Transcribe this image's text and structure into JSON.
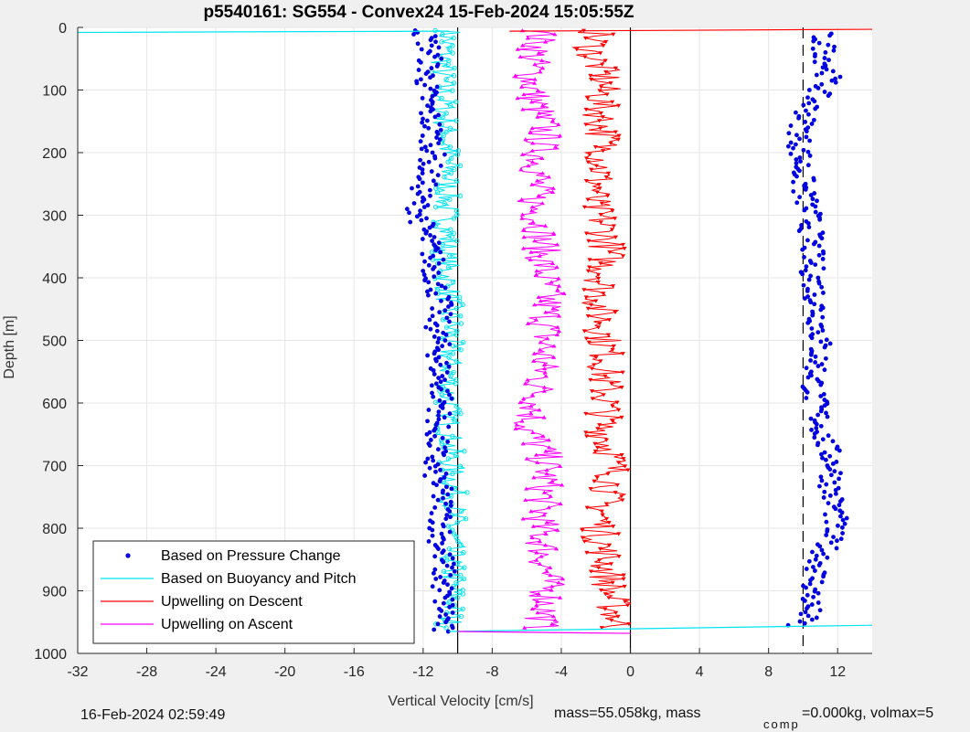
{
  "chart_data": {
    "type": "scatter",
    "title": "p5540161: SG554 - Convex24 15-Feb-2024 15:05:55Z",
    "xlabel": "Vertical Velocity [cm/s]",
    "ylabel": "Depth [m]",
    "xlim": [
      -32,
      14
    ],
    "ylim": [
      1000,
      0
    ],
    "y_reversed": true,
    "x_ticks": [
      -32,
      -28,
      -24,
      -20,
      -16,
      -12,
      -8,
      -4,
      0,
      4,
      8,
      12
    ],
    "y_ticks": [
      0,
      100,
      200,
      300,
      400,
      500,
      600,
      700,
      800,
      900,
      1000
    ],
    "grid": true,
    "legend_position": "bottom-left",
    "colors": {
      "pressure": "#0000e0",
      "buoyancy": "#00e5f0",
      "upwelling_descent": "#ff0000",
      "upwelling_ascent": "#ff00ff"
    },
    "vertical_lines": [
      {
        "x": -10,
        "style": "solid"
      },
      {
        "x": 0,
        "style": "solid"
      },
      {
        "x": 10,
        "style": "dashed"
      }
    ],
    "series": [
      {
        "name": "Based on Pressure Change",
        "marker": "dot",
        "profiles": [
          {
            "depth": [
              5,
              40,
              80,
              120,
              160,
              200,
              240,
              280,
              320,
              360,
              400,
              440,
              480,
              520,
              560,
              600,
              640,
              680,
              700,
              740,
              780,
              820,
              860,
              900,
              940,
              965
            ],
            "x": [
              -12,
              -11.5,
              -11.8,
              -11.8,
              -11.5,
              -11.4,
              -11.8,
              -12.3,
              -12,
              -11.5,
              -11.3,
              -11,
              -11.2,
              -11.1,
              -11,
              -10.9,
              -11.2,
              -11.3,
              -11.5,
              -11,
              -10.9,
              -11,
              -10.8,
              -10.9,
              -10.7,
              -11
            ]
          },
          {
            "depth": [
              10,
              40,
              80,
              120,
              150,
              180,
              220,
              260,
              300,
              340,
              380,
              420,
              460,
              500,
              540,
              580,
              620,
              660,
              700,
              740,
              780,
              820,
              860,
              900,
              940,
              955
            ],
            "x": [
              11,
              11.3,
              11.5,
              10.5,
              10,
              9.8,
              9.9,
              10,
              10.4,
              10.5,
              10.5,
              10.7,
              10.9,
              11,
              10.8,
              10.6,
              10.9,
              11.2,
              11.8,
              11.6,
              11.9,
              11.5,
              10.9,
              10.5,
              10.3,
              9.5
            ]
          }
        ]
      },
      {
        "name": "Based on Buoyancy and Pitch",
        "marker": "circle",
        "profiles": [
          {
            "depth": [
              5,
              40,
              80,
              120,
              160,
              200,
              240,
              280,
              320,
              360,
              400,
              440,
              480,
              520,
              560,
              600,
              640,
              680,
              720,
              760,
              800,
              840,
              880,
              920,
              960
            ],
            "x": [
              -10.5,
              -10.8,
              -10.9,
              -10.8,
              -10.7,
              -10.6,
              -10.5,
              -10.7,
              -10.6,
              -10.7,
              -10.6,
              -10.5,
              -10.4,
              -10.5,
              -10.5,
              -10.6,
              -10.5,
              -10.4,
              -10.3,
              -10.2,
              -10.3,
              -10.4,
              -10.3,
              -10.3,
              -10.5
            ]
          }
        ]
      },
      {
        "name": "Upwelling on Descent",
        "marker": "triangle-down",
        "profiles": [
          {
            "depth": [
              5,
              40,
              80,
              120,
              160,
              200,
              240,
              280,
              320,
              360,
              400,
              440,
              480,
              520,
              560,
              600,
              640,
              680,
              720,
              760,
              800,
              840,
              880,
              920,
              960
            ],
            "x": [
              -2,
              -2.3,
              -1.5,
              -1.8,
              -1.6,
              -1.5,
              -1.8,
              -2.2,
              -1.5,
              -1.3,
              -1.6,
              -1.8,
              -1.6,
              -1.4,
              -1.5,
              -1.4,
              -1.6,
              -1.1,
              -1,
              -1.5,
              -1.8,
              -1.5,
              -1.3,
              -1,
              -0.8
            ]
          }
        ]
      },
      {
        "name": "Upwelling on Ascent",
        "marker": "triangle-up",
        "profiles": [
          {
            "depth": [
              5,
              40,
              80,
              120,
              160,
              200,
              240,
              280,
              320,
              360,
              400,
              440,
              480,
              520,
              560,
              600,
              640,
              680,
              720,
              760,
              800,
              840,
              880,
              920,
              960
            ],
            "x": [
              -5.2,
              -5.5,
              -5.8,
              -5.5,
              -5,
              -5.2,
              -5.4,
              -5.6,
              -5.2,
              -5.1,
              -5,
              -4.8,
              -4.9,
              -5,
              -5.2,
              -5.4,
              -6,
              -5,
              -4.9,
              -5.1,
              -5.2,
              -5,
              -4.9,
              -4.8,
              -5.2
            ]
          }
        ]
      }
    ]
  },
  "footer": {
    "date": "16-Feb-2024 02:59:49",
    "mass_text": "mass=55.058kg, mass",
    "comp_subscript": "comp",
    "tail_text": "=0.000kg, volmax=5"
  }
}
